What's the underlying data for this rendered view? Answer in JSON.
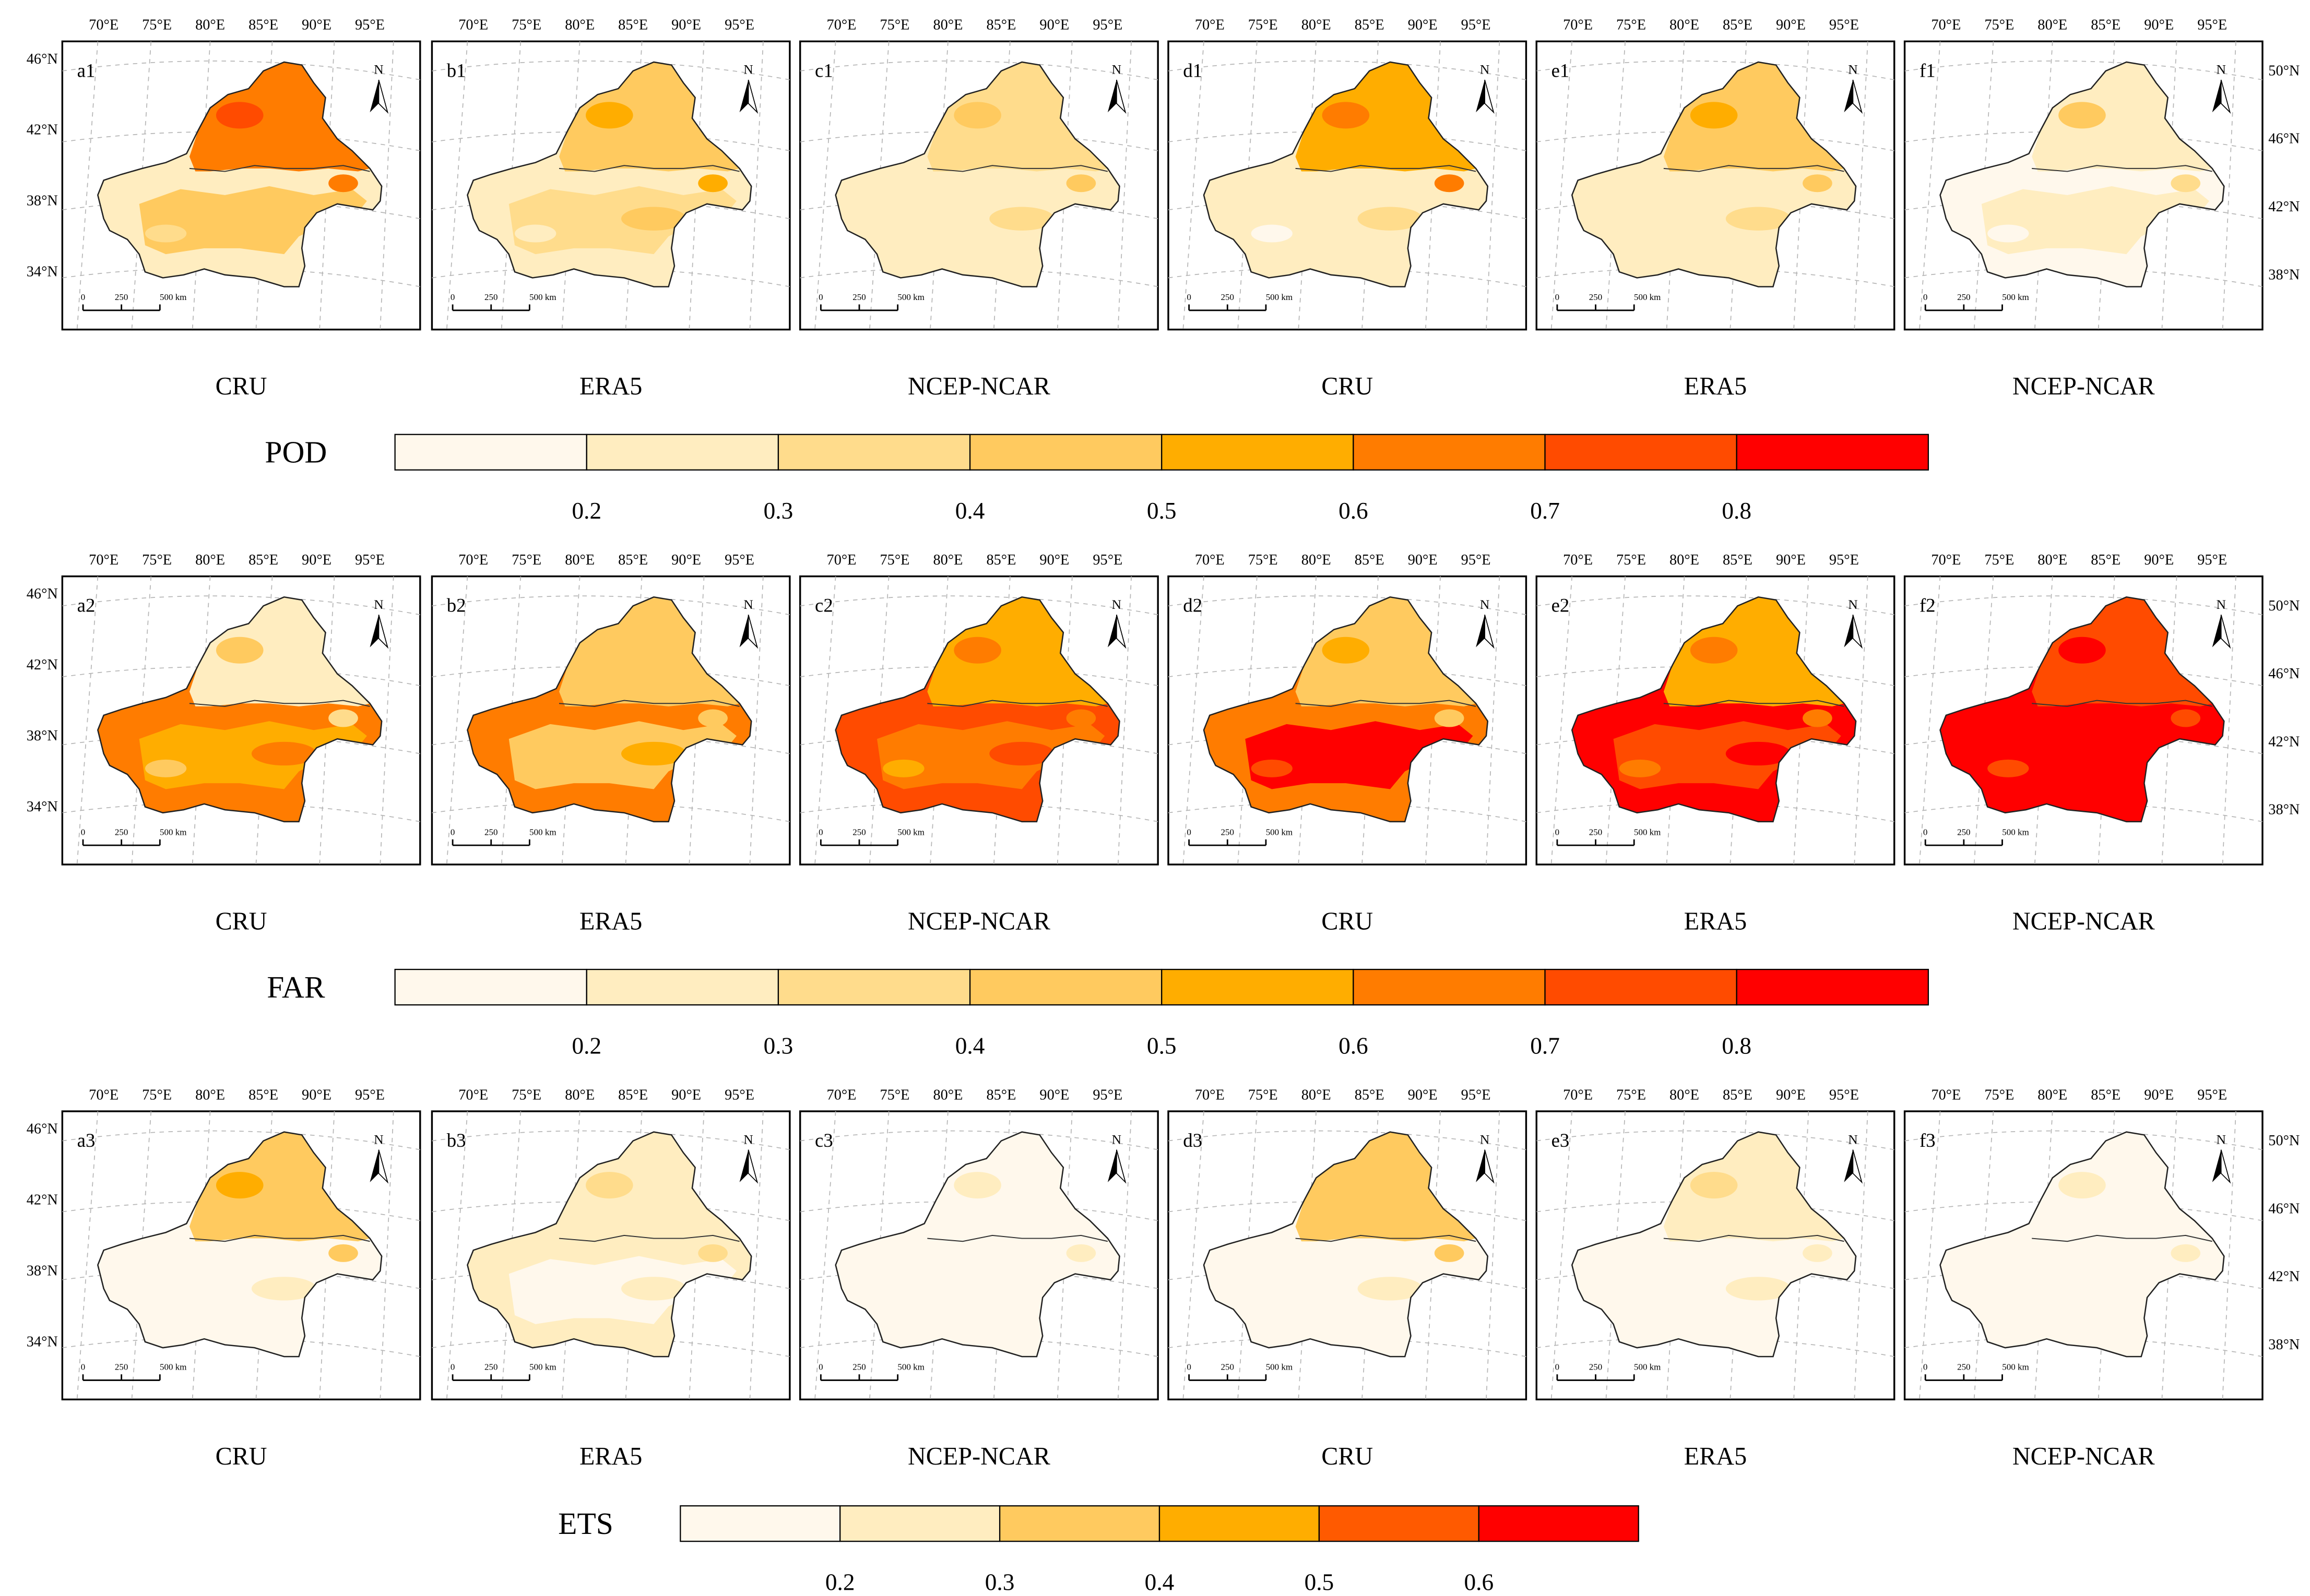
{
  "rows": [
    {
      "metric": "POD",
      "panels": [
        {
          "label": "a1",
          "dataset": "CRU",
          "level": [
            0.62,
            0.4,
            0.3
          ]
        },
        {
          "label": "b1",
          "dataset": "ERA5",
          "level": [
            0.5,
            0.38,
            0.3
          ]
        },
        {
          "label": "c1",
          "dataset": "NCEP-NCAR",
          "level": [
            0.38,
            0.28,
            0.22
          ]
        },
        {
          "label": "d1",
          "dataset": "CRU",
          "level": [
            0.6,
            0.25,
            0.2
          ]
        },
        {
          "label": "e1",
          "dataset": "ERA5",
          "level": [
            0.42,
            0.3,
            0.22
          ]
        },
        {
          "label": "f1",
          "dataset": "NCEP-NCAR",
          "level": [
            0.3,
            0.2,
            0.18
          ]
        }
      ]
    },
    {
      "metric": "FAR",
      "panels": [
        {
          "label": "a2",
          "dataset": "CRU",
          "level": [
            0.3,
            0.55,
            0.7
          ]
        },
        {
          "label": "b2",
          "dataset": "ERA5",
          "level": [
            0.4,
            0.5,
            0.7
          ]
        },
        {
          "label": "c2",
          "dataset": "NCEP-NCAR",
          "level": [
            0.6,
            0.65,
            0.72
          ]
        },
        {
          "label": "d2",
          "dataset": "CRU",
          "level": [
            0.45,
            0.82,
            0.7
          ]
        },
        {
          "label": "e2",
          "dataset": "ERA5",
          "level": [
            0.6,
            0.75,
            0.82
          ]
        },
        {
          "label": "f2",
          "dataset": "NCEP-NCAR",
          "level": [
            0.72,
            0.85,
            0.84
          ]
        }
      ]
    },
    {
      "metric": "ETS",
      "panels": [
        {
          "label": "a3",
          "dataset": "CRU",
          "level": [
            0.45,
            0.15,
            0.18
          ]
        },
        {
          "label": "b3",
          "dataset": "ERA5",
          "level": [
            0.28,
            0.18,
            0.2
          ]
        },
        {
          "label": "c3",
          "dataset": "NCEP-NCAR",
          "level": [
            0.18,
            0.1,
            0.1
          ]
        },
        {
          "label": "d3",
          "dataset": "CRU",
          "level": [
            0.4,
            0.12,
            0.15
          ]
        },
        {
          "label": "e3",
          "dataset": "ERA5",
          "level": [
            0.25,
            0.12,
            0.12
          ]
        },
        {
          "label": "f3",
          "dataset": "NCEP-NCAR",
          "level": [
            0.15,
            0.1,
            0.1
          ]
        }
      ]
    }
  ],
  "longitude_labels": [
    "70°E",
    "75°E",
    "80°E",
    "85°E",
    "90°E",
    "95°E"
  ],
  "latitude_labels_left": [
    "46°N",
    "42°N",
    "38°N",
    "34°N"
  ],
  "latitude_labels_right": [
    "50°N",
    "46°N",
    "42°N",
    "38°N"
  ],
  "north_arrow": "N",
  "scale_bar": {
    "ticks": [
      "0",
      "250",
      "500 km"
    ]
  },
  "legends": [
    {
      "title": "POD",
      "colors": [
        "#fff8ec",
        "#ffedc0",
        "#ffdc8c",
        "#ffca5f",
        "#ffad00",
        "#ff7c00",
        "#ff4b00",
        "#ff0000"
      ],
      "tick_labels": [
        "0.2",
        "0.3",
        "0.4",
        "0.5",
        "0.6",
        "0.7",
        "0.8"
      ]
    },
    {
      "title": "FAR",
      "colors": [
        "#fff8ec",
        "#ffedc0",
        "#ffdc8c",
        "#ffca5f",
        "#ffad00",
        "#ff7c00",
        "#ff4b00",
        "#ff0000"
      ],
      "tick_labels": [
        "0.2",
        "0.3",
        "0.4",
        "0.5",
        "0.6",
        "0.7",
        "0.8"
      ]
    },
    {
      "title": "ETS",
      "colors": [
        "#fff8ec",
        "#ffedc0",
        "#ffca5f",
        "#ffad00",
        "#ff5a00",
        "#ff0000"
      ],
      "tick_labels": [
        "0.2",
        "0.3",
        "0.4",
        "0.5",
        "0.6"
      ]
    }
  ]
}
